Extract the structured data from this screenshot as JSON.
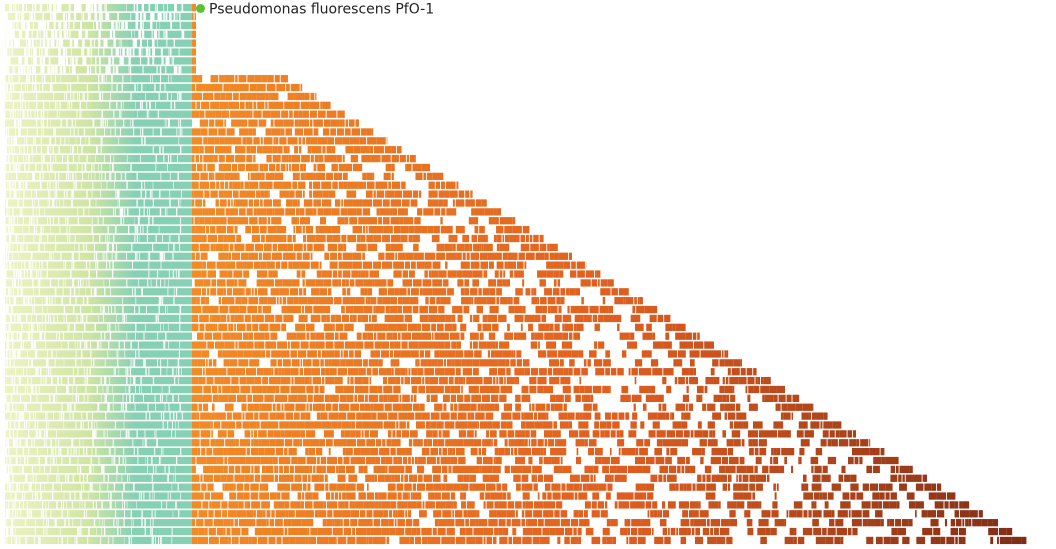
{
  "legend": {
    "label": "Pseudomonas fluorescens PfO-1",
    "marker_color": "#5bc236"
  },
  "colors": {
    "core_light": "#eef3c4",
    "core_mid": "#cfe5a4",
    "core_dark": "#86d0b4",
    "accessory_light": "#f28a26",
    "accessory_mid": "#df5e1f",
    "accessory_dark": "#7a2a16",
    "background": "#ffffff"
  }
}
